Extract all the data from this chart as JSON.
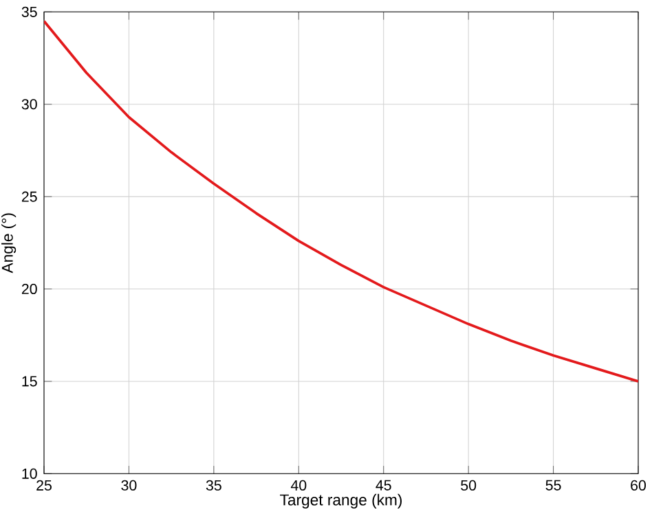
{
  "chart_data": {
    "type": "line",
    "xlabel": "Target range (km)",
    "ylabel": "Angle (°)",
    "x": [
      25,
      27.5,
      30,
      32.5,
      35,
      37.5,
      40,
      42.5,
      45,
      47.5,
      50,
      52.5,
      55,
      57.5,
      60
    ],
    "series": [
      {
        "color": "#e31a1c",
        "values": [
          34.5,
          31.7,
          29.3,
          27.4,
          25.7,
          24.1,
          22.6,
          21.3,
          20.1,
          19.1,
          18.1,
          17.2,
          16.4,
          15.7,
          15.0
        ]
      }
    ],
    "xlim": [
      25,
      60
    ],
    "ylim": [
      10,
      35
    ],
    "xticks": [
      25,
      30,
      35,
      40,
      45,
      50,
      55,
      60
    ],
    "yticks": [
      10,
      15,
      20,
      25,
      30,
      35
    ],
    "grid": true,
    "marker": "none",
    "line_style": "solid"
  }
}
